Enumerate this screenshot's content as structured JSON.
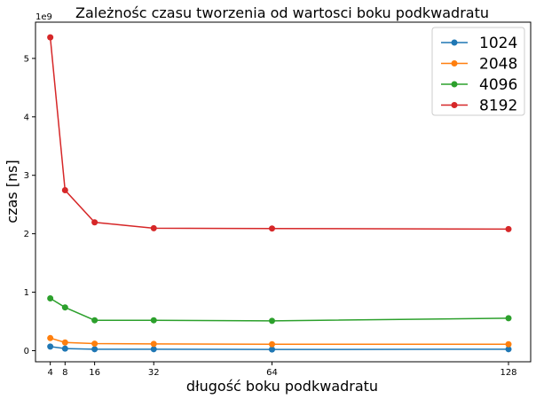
{
  "chart_data": {
    "type": "line",
    "title": "Zależnośc czasu tworzenia od wartosci boku podkwadratu",
    "xlabel": "długość boku podkwadratu",
    "ylabel": "czas [ns]",
    "y_offset_label": "1e9",
    "x": [
      4,
      8,
      16,
      32,
      64,
      128
    ],
    "x_ticks": [
      4,
      8,
      16,
      32,
      64,
      128
    ],
    "y_ticks": [
      0,
      1,
      2,
      3,
      4,
      5
    ],
    "y_tick_labels": [
      "0",
      "1",
      "2",
      "3",
      "4",
      "5"
    ],
    "xlim": [
      0,
      134
    ],
    "ylim": [
      -0.19,
      5.62
    ],
    "y_multiplier": 1000000000,
    "grid": false,
    "legend_position": "top-right",
    "series": [
      {
        "name": "1024",
        "color": "#1f77b4",
        "values": [
          0.07,
          0.035,
          0.025,
          0.025,
          0.02,
          0.025
        ]
      },
      {
        "name": "2048",
        "color": "#ff7f0e",
        "values": [
          0.215,
          0.14,
          0.12,
          0.115,
          0.11,
          0.11
        ]
      },
      {
        "name": "4096",
        "color": "#2ca02c",
        "values": [
          0.895,
          0.74,
          0.52,
          0.52,
          0.51,
          0.555
        ]
      },
      {
        "name": "8192",
        "color": "#d62728",
        "values": [
          5.36,
          2.745,
          2.195,
          2.095,
          2.09,
          2.08
        ]
      }
    ]
  }
}
